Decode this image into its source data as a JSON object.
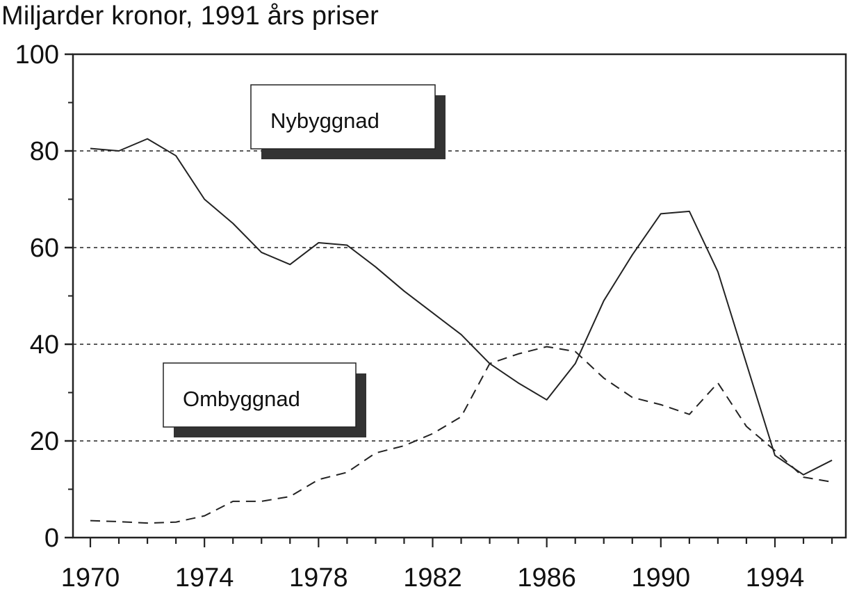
{
  "chart_data": {
    "type": "line",
    "title": "Miljarder kronor, 1991 års priser",
    "xlabel": "",
    "ylabel": "",
    "xlim": [
      1970,
      1996
    ],
    "ylim": [
      0,
      100
    ],
    "x_ticks": [
      1970,
      1974,
      1978,
      1982,
      1986,
      1990,
      1994
    ],
    "y_ticks": [
      0,
      20,
      40,
      60,
      80,
      100
    ],
    "grid": "horizontal dashed at 20, 40, 60, 80",
    "x": [
      1970,
      1971,
      1972,
      1973,
      1974,
      1975,
      1976,
      1977,
      1978,
      1979,
      1980,
      1981,
      1982,
      1983,
      1984,
      1985,
      1986,
      1987,
      1988,
      1989,
      1990,
      1991,
      1992,
      1993,
      1994,
      1995,
      1996
    ],
    "series": [
      {
        "name": "Nybyggnad",
        "style": "solid",
        "values": [
          80.5,
          80.0,
          82.5,
          79.0,
          70.0,
          65.0,
          59.0,
          56.5,
          61.0,
          60.5,
          56.0,
          51.0,
          46.5,
          42.0,
          36.0,
          32.0,
          28.5,
          36.0,
          49.0,
          58.5,
          67.0,
          67.5,
          55.0,
          36.0,
          17.0,
          13.0,
          16.0
        ]
      },
      {
        "name": "Ombyggnad",
        "style": "dashed",
        "values": [
          3.5,
          3.3,
          3.0,
          3.2,
          4.5,
          7.5,
          7.5,
          8.5,
          12.0,
          13.5,
          17.5,
          19.0,
          21.5,
          25.0,
          36.0,
          38.0,
          39.5,
          38.5,
          33.0,
          29.0,
          27.5,
          25.5,
          32.0,
          23.0,
          18.0,
          12.5,
          11.5
        ]
      }
    ],
    "colors": {
      "line": "#222222",
      "grid": "#222222",
      "box_shadow": "#333333",
      "box_fill": "#ffffff"
    }
  }
}
